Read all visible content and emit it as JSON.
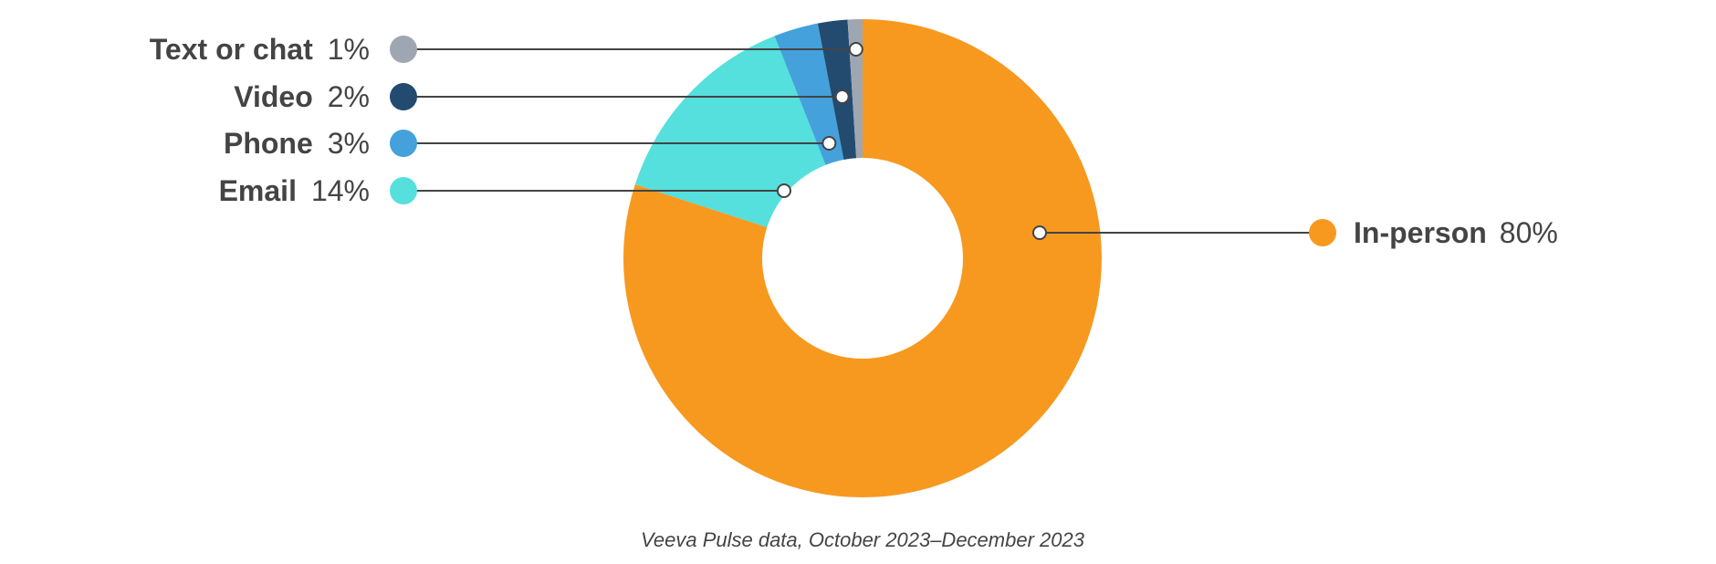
{
  "chart_data": {
    "type": "pie",
    "variant": "donut",
    "categories": [
      "In-person",
      "Email",
      "Phone",
      "Video",
      "Text or chat"
    ],
    "values": [
      80,
      14,
      3,
      2,
      1
    ],
    "value_labels": [
      "80%",
      "14%",
      "3%",
      "2%",
      "1%"
    ],
    "colors": {
      "In-person": "#F7991F",
      "Email": "#55DFDD",
      "Phone": "#44A1DB",
      "Video": "#234B70",
      "Text or chat": "#9EA6B2"
    },
    "legend_placement": "callouts",
    "source": "Veeva Pulse data, October 2023–December 2023"
  }
}
